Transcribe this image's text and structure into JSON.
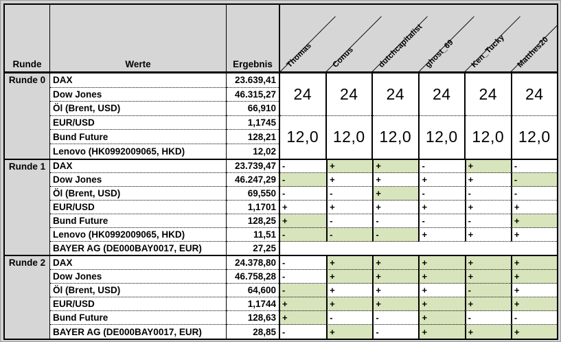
{
  "table": {
    "headers": {
      "runde": "Runde",
      "werte": "Werte",
      "ergebnis": "Ergebnis"
    },
    "players": [
      "Thomas",
      "Conus",
      "dutchcapitalist",
      "ghost_69",
      "Ken_Tucky",
      "Matthes20"
    ],
    "colors": {
      "highlight_green": "#d8e4bc",
      "header_gray": "#d6d6d6",
      "border_black": "#000000",
      "page_background": "#d3d3d3"
    },
    "sections": [
      {
        "label": "Runde 0",
        "merged_scores": {
          "upper": "24",
          "lower": "12,0"
        },
        "rows": [
          {
            "name": "DAX",
            "value": "23.639,41"
          },
          {
            "name": "Dow Jones",
            "value": "46.315,27"
          },
          {
            "name": "Öl (Brent, USD)",
            "value": "66,910"
          },
          {
            "name": "EUR/USD",
            "value": "1,1745"
          },
          {
            "name": "Bund Future",
            "value": "128,21"
          },
          {
            "name": "Lenovo (HK0992009065, HKD)",
            "value": "12,02"
          }
        ]
      },
      {
        "label": "Runde 1",
        "rows": [
          {
            "name": "DAX",
            "value": "23.739,47",
            "marks": [
              {
                "sign": "-",
                "hl": false
              },
              {
                "sign": "+",
                "hl": true
              },
              {
                "sign": "+",
                "hl": true
              },
              {
                "sign": "-",
                "hl": false
              },
              {
                "sign": "+",
                "hl": true
              },
              {
                "sign": "-",
                "hl": false
              }
            ]
          },
          {
            "name": "Dow Jones",
            "value": "46.247,29",
            "marks": [
              {
                "sign": "-",
                "hl": true
              },
              {
                "sign": "+",
                "hl": false
              },
              {
                "sign": "+",
                "hl": false
              },
              {
                "sign": "+",
                "hl": false
              },
              {
                "sign": "+",
                "hl": false
              },
              {
                "sign": "-",
                "hl": true
              }
            ]
          },
          {
            "name": "Öl (Brent, USD)",
            "value": "69,550",
            "marks": [
              {
                "sign": "-",
                "hl": false
              },
              {
                "sign": "-",
                "hl": false
              },
              {
                "sign": "+",
                "hl": true
              },
              {
                "sign": "-",
                "hl": false
              },
              {
                "sign": "-",
                "hl": false
              },
              {
                "sign": "-",
                "hl": false
              }
            ]
          },
          {
            "name": "EUR/USD",
            "value": "1,1701",
            "marks": [
              {
                "sign": "+",
                "hl": false
              },
              {
                "sign": "+",
                "hl": false
              },
              {
                "sign": "+",
                "hl": false
              },
              {
                "sign": "+",
                "hl": false
              },
              {
                "sign": "+",
                "hl": false
              },
              {
                "sign": "+",
                "hl": false
              }
            ]
          },
          {
            "name": "Bund Future",
            "value": "128,25",
            "marks": [
              {
                "sign": "+",
                "hl": true
              },
              {
                "sign": "-",
                "hl": false
              },
              {
                "sign": "-",
                "hl": false
              },
              {
                "sign": "-",
                "hl": false
              },
              {
                "sign": "-",
                "hl": false
              },
              {
                "sign": "+",
                "hl": true
              }
            ]
          },
          {
            "name": "Lenovo (HK0992009065, HKD)",
            "value": "11,51",
            "marks": [
              {
                "sign": "-",
                "hl": true
              },
              {
                "sign": "-",
                "hl": true
              },
              {
                "sign": "-",
                "hl": true
              },
              {
                "sign": "+",
                "hl": false
              },
              {
                "sign": "+",
                "hl": false
              },
              {
                "sign": "+",
                "hl": false
              }
            ]
          },
          {
            "name": "BAYER AG (DE000BAY0017, EUR)",
            "value": "27,25",
            "marks": null
          }
        ]
      },
      {
        "label": "Runde 2",
        "rows": [
          {
            "name": "DAX",
            "value": "24.378,80",
            "marks": [
              {
                "sign": "-",
                "hl": false
              },
              {
                "sign": "+",
                "hl": true
              },
              {
                "sign": "+",
                "hl": true
              },
              {
                "sign": "+",
                "hl": true
              },
              {
                "sign": "+",
                "hl": true
              },
              {
                "sign": "+",
                "hl": true
              }
            ]
          },
          {
            "name": "Dow Jones",
            "value": "46.758,28",
            "marks": [
              {
                "sign": "-",
                "hl": false
              },
              {
                "sign": "+",
                "hl": true
              },
              {
                "sign": "+",
                "hl": true
              },
              {
                "sign": "+",
                "hl": true
              },
              {
                "sign": "+",
                "hl": true
              },
              {
                "sign": "+",
                "hl": true
              }
            ]
          },
          {
            "name": "Öl (Brent, USD)",
            "value": "64,600",
            "marks": [
              {
                "sign": "-",
                "hl": true
              },
              {
                "sign": "+",
                "hl": false
              },
              {
                "sign": "+",
                "hl": false
              },
              {
                "sign": "+",
                "hl": false
              },
              {
                "sign": "-",
                "hl": true
              },
              {
                "sign": "+",
                "hl": false
              }
            ]
          },
          {
            "name": "EUR/USD",
            "value": "1,1744",
            "marks": [
              {
                "sign": "+",
                "hl": true
              },
              {
                "sign": "+",
                "hl": true
              },
              {
                "sign": "+",
                "hl": true
              },
              {
                "sign": "+",
                "hl": true
              },
              {
                "sign": "+",
                "hl": true
              },
              {
                "sign": "+",
                "hl": true
              }
            ]
          },
          {
            "name": "Bund Future",
            "value": "128,63",
            "marks": [
              {
                "sign": "+",
                "hl": true
              },
              {
                "sign": "-",
                "hl": false
              },
              {
                "sign": "-",
                "hl": false
              },
              {
                "sign": "+",
                "hl": true
              },
              {
                "sign": "-",
                "hl": false
              },
              {
                "sign": "-",
                "hl": false
              }
            ]
          },
          {
            "name": "BAYER AG (DE000BAY0017, EUR)",
            "value": "28,85",
            "marks": [
              {
                "sign": "-",
                "hl": false
              },
              {
                "sign": "+",
                "hl": true
              },
              {
                "sign": "-",
                "hl": false
              },
              {
                "sign": "+",
                "hl": true
              },
              {
                "sign": "+",
                "hl": true
              },
              {
                "sign": "+",
                "hl": true
              }
            ]
          }
        ]
      }
    ]
  }
}
